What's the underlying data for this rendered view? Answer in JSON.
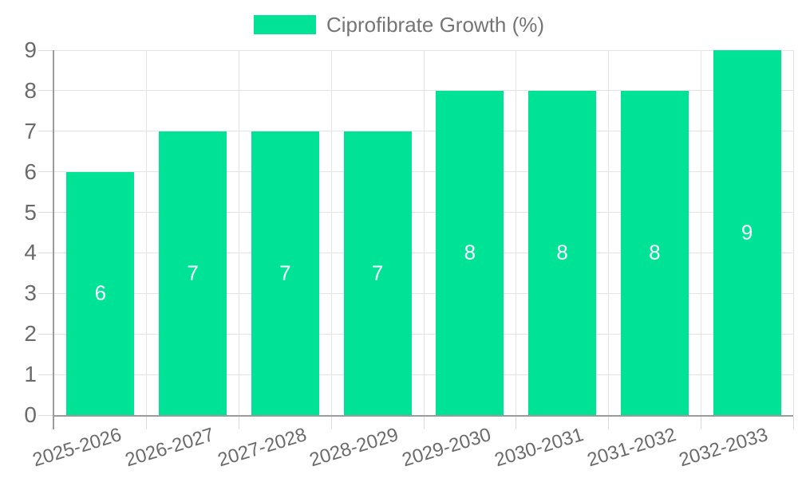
{
  "legend": {
    "items": [
      {
        "label": "Ciprofibrate Growth (%)",
        "color": "#00E396"
      }
    ],
    "position": "top"
  },
  "colors": {
    "bar": "#00E396",
    "grid": "#E4E4E4",
    "tick": "#DBDBDB",
    "axis_line": "#9B9B9B",
    "axis_text": "#6B6B6B",
    "legend_text": "#757575",
    "value_label_text": "#FFFFFF",
    "background": "#FFFFFF"
  },
  "chart_data": {
    "type": "bar",
    "title": "",
    "xlabel": "",
    "ylabel": "",
    "categories": [
      "2025-2026",
      "2026-2027",
      "2027-2028",
      "2028-2029",
      "2029-2030",
      "2030-2031",
      "2031-2032",
      "2032-2033"
    ],
    "series": [
      {
        "name": "Ciprofibrate Growth (%)",
        "values": [
          6,
          7,
          7,
          7,
          8,
          8,
          8,
          9
        ]
      }
    ],
    "ylim": [
      0,
      9
    ],
    "y_ticks": [
      0,
      1,
      2,
      3,
      4,
      5,
      6,
      7,
      8,
      9
    ],
    "grid": "both",
    "legend_position": "top",
    "data_labels": {
      "show": true,
      "position": "center",
      "color": "#FFFFFF"
    },
    "x_tick_rotation_deg": -17
  }
}
